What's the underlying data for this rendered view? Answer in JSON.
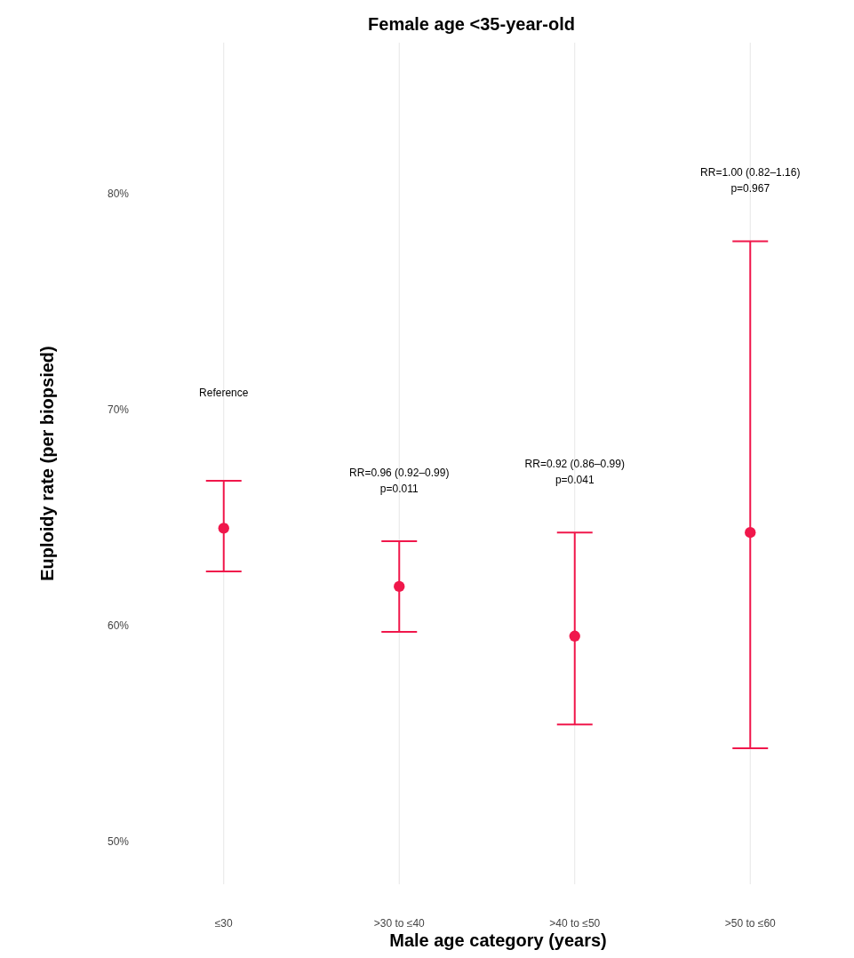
{
  "chart_data": {
    "type": "scatter",
    "title": "Female age <35-year-old",
    "xlabel": "Male age category (years)",
    "ylabel": "Euploidy rate (per biopsied)",
    "categories": [
      "≤30",
      ">30 to ≤40",
      ">40 to ≤50",
      ">50 to ≤60"
    ],
    "series": [
      {
        "color": "#f0174b",
        "values": [
          64.5,
          61.8,
          59.5,
          64.3
        ],
        "errors": [
          [
            62.5,
            66.7
          ],
          [
            59.7,
            63.9
          ],
          [
            55.4,
            64.3
          ],
          [
            54.3,
            77.8
          ]
        ]
      }
    ],
    "ylim": [
      48,
      87
    ],
    "yticks": [
      {
        "value": 50,
        "label": "50%"
      },
      {
        "value": 60,
        "label": "60%"
      },
      {
        "value": 70,
        "label": "70%"
      },
      {
        "value": 80,
        "label": "80%"
      }
    ],
    "grid": "x",
    "marker": "circle",
    "annotations": [
      "Reference",
      "RR=0.96 (0.92–0.99)\np=0.011",
      "RR=0.92 (0.86–0.99)\np=0.041",
      "RR=1.00 (0.82–1.16)\np=0.967"
    ]
  }
}
